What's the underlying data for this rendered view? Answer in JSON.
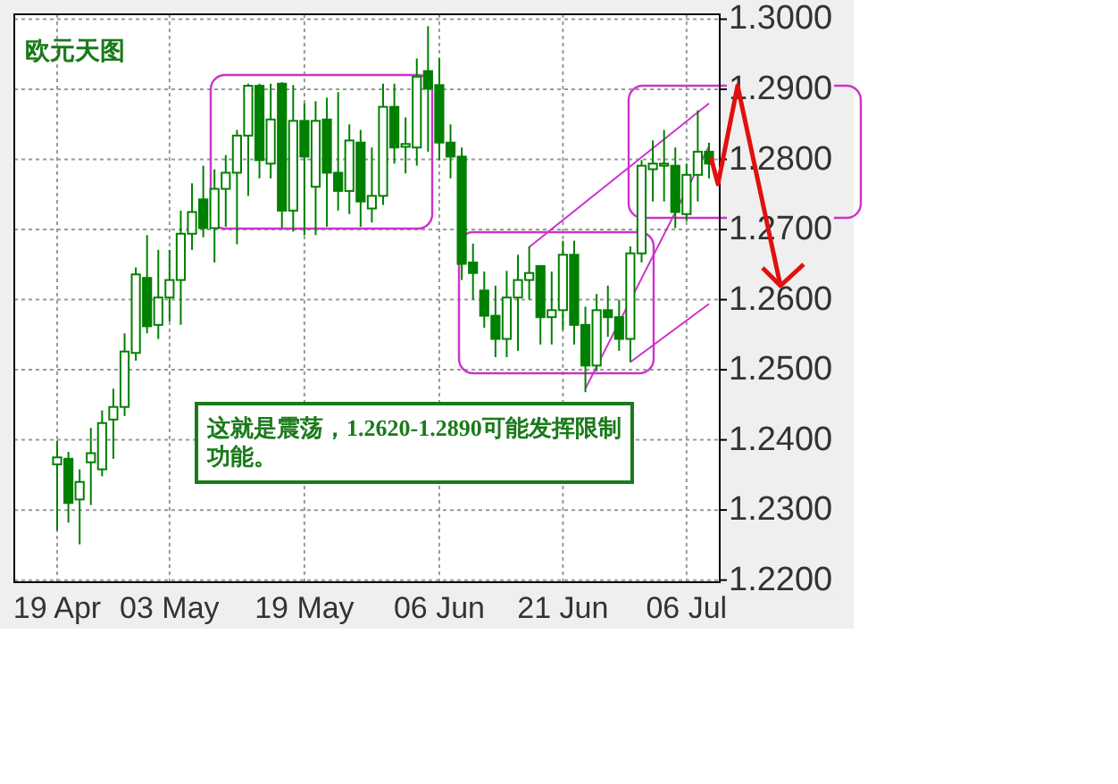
{
  "chart_data": {
    "type": "candlestick",
    "title": "欧元天图",
    "categories": [
      "19 Apr",
      null,
      null,
      null,
      null,
      null,
      null,
      null,
      null,
      null,
      "03 May",
      null,
      null,
      null,
      null,
      null,
      null,
      null,
      null,
      null,
      null,
      null,
      "19 May",
      null,
      null,
      null,
      null,
      null,
      null,
      null,
      null,
      null,
      null,
      null,
      "06 Jun",
      null,
      null,
      null,
      null,
      null,
      null,
      null,
      null,
      null,
      null,
      "21 Jun",
      null,
      null,
      null,
      null,
      null,
      null,
      null,
      null,
      null,
      null,
      "06 Jul",
      null,
      null
    ],
    "ohlc": [
      [
        1.2365,
        1.2399,
        1.2271,
        1.2375
      ],
      [
        1.2373,
        1.2383,
        1.2282,
        1.231
      ],
      [
        1.2315,
        1.2358,
        1.2251,
        1.234
      ],
      [
        1.2368,
        1.2417,
        1.2307,
        1.2381
      ],
      [
        1.2358,
        1.2442,
        1.2348,
        1.2424
      ],
      [
        1.2429,
        1.2473,
        1.2373,
        1.2447
      ],
      [
        1.2447,
        1.2552,
        1.2434,
        1.2526
      ],
      [
        1.2524,
        1.2646,
        1.2513,
        1.2636
      ],
      [
        1.2631,
        1.2692,
        1.2552,
        1.2562
      ],
      [
        1.2564,
        1.2671,
        1.2544,
        1.2603
      ],
      [
        1.2603,
        1.2671,
        1.2569,
        1.2628
      ],
      [
        1.2628,
        1.2727,
        1.2564,
        1.2694
      ],
      [
        1.2694,
        1.2766,
        1.2671,
        1.2725
      ],
      [
        1.2743,
        1.2791,
        1.2689,
        1.2702
      ],
      [
        1.2702,
        1.2786,
        1.2653,
        1.2758
      ],
      [
        1.2758,
        1.2806,
        1.2704,
        1.2781
      ],
      [
        1.2781,
        1.2842,
        1.2679,
        1.2834
      ],
      [
        1.2834,
        1.2908,
        1.2748,
        1.2905
      ],
      [
        1.2905,
        1.2908,
        1.2773,
        1.2799
      ],
      [
        1.2794,
        1.2908,
        1.2773,
        1.2857
      ],
      [
        1.2908,
        1.291,
        1.2702,
        1.2727
      ],
      [
        1.2727,
        1.2906,
        1.2697,
        1.2855
      ],
      [
        1.2855,
        1.288,
        1.2692,
        1.2804
      ],
      [
        1.2761,
        1.2883,
        1.2692,
        1.2855
      ],
      [
        1.2857,
        1.2888,
        1.2704,
        1.2781
      ],
      [
        1.2781,
        1.2896,
        1.2727,
        1.2755
      ],
      [
        1.2755,
        1.285,
        1.2722,
        1.2827
      ],
      [
        1.2824,
        1.2842,
        1.2704,
        1.274
      ],
      [
        1.273,
        1.2817,
        1.271,
        1.2748
      ],
      [
        1.2748,
        1.2908,
        1.2735,
        1.2875
      ],
      [
        1.2875,
        1.2908,
        1.2794,
        1.2817
      ],
      [
        1.2818,
        1.286,
        1.278,
        1.2822
      ],
      [
        1.2817,
        1.2944,
        1.2791,
        1.2918
      ],
      [
        1.2926,
        1.299,
        1.2811,
        1.2901
      ],
      [
        1.2906,
        1.2944,
        1.2799,
        1.2824
      ],
      [
        1.2824,
        1.285,
        1.2773,
        1.2804
      ],
      [
        1.2804,
        1.2817,
        1.2628,
        1.2651
      ],
      [
        1.2653,
        1.268,
        1.26,
        1.2638
      ],
      [
        1.2613,
        1.264,
        1.256,
        1.2577
      ],
      [
        1.2577,
        1.262,
        1.2518,
        1.2544
      ],
      [
        1.2544,
        1.2641,
        1.2518,
        1.2603
      ],
      [
        1.2603,
        1.2664,
        1.2527,
        1.2628
      ],
      [
        1.2628,
        1.2676,
        1.26,
        1.2638
      ],
      [
        1.2648,
        1.2648,
        1.2536,
        1.2575
      ],
      [
        1.2575,
        1.264,
        1.2536,
        1.2585
      ],
      [
        1.2585,
        1.2684,
        1.2557,
        1.2664
      ],
      [
        1.2664,
        1.2684,
        1.2536,
        1.2564
      ],
      [
        1.2564,
        1.259,
        1.2468,
        1.2506
      ],
      [
        1.2506,
        1.2608,
        1.2498,
        1.2585
      ],
      [
        1.2585,
        1.262,
        1.2547,
        1.2575
      ],
      [
        1.2575,
        1.26,
        1.2527,
        1.2544
      ],
      [
        1.2544,
        1.2676,
        1.2511,
        1.2666
      ],
      [
        1.2666,
        1.2799,
        1.2653,
        1.2791
      ],
      [
        1.2786,
        1.2827,
        1.274,
        1.2794
      ],
      [
        1.2791,
        1.2842,
        1.274,
        1.2794
      ],
      [
        1.2791,
        1.2817,
        1.2702,
        1.2725
      ],
      [
        1.2722,
        1.2794,
        1.2712,
        1.2778
      ],
      [
        1.2778,
        1.287,
        1.274,
        1.2811
      ],
      [
        1.2811,
        1.2824,
        1.2773,
        1.2794
      ]
    ],
    "color": "#008000",
    "series": [
      {
        "type": "line",
        "color": "#cc33cc",
        "values": [
          null,
          null,
          null,
          null,
          null,
          null,
          null,
          null,
          null,
          null,
          null,
          null,
          null,
          null,
          null,
          null,
          null,
          null,
          null,
          null,
          null,
          null,
          null,
          null,
          null,
          null,
          null,
          null,
          null,
          null,
          null,
          null,
          null,
          null,
          null,
          null,
          null,
          null,
          null,
          null,
          null,
          null,
          1.2675,
          null,
          null,
          null,
          null,
          null,
          null,
          null,
          null,
          null,
          null,
          null,
          null,
          null,
          null,
          null,
          1.288
        ]
      },
      {
        "type": "line",
        "color": "#cc33cc",
        "values": [
          null,
          null,
          null,
          null,
          null,
          null,
          null,
          null,
          null,
          null,
          null,
          null,
          null,
          null,
          null,
          null,
          null,
          null,
          null,
          null,
          null,
          null,
          null,
          null,
          null,
          null,
          null,
          null,
          null,
          null,
          null,
          null,
          null,
          null,
          null,
          null,
          null,
          null,
          null,
          null,
          null,
          null,
          null,
          null,
          null,
          null,
          null,
          1.2473,
          null,
          null,
          null,
          null,
          null,
          null,
          null,
          null,
          null,
          null,
          1.2819
        ]
      },
      {
        "type": "line",
        "color": "#cc33cc",
        "values": [
          null,
          null,
          null,
          null,
          null,
          null,
          null,
          null,
          null,
          null,
          null,
          null,
          null,
          null,
          null,
          null,
          null,
          null,
          null,
          null,
          null,
          null,
          null,
          null,
          null,
          null,
          null,
          null,
          null,
          null,
          null,
          null,
          null,
          null,
          null,
          null,
          null,
          null,
          null,
          null,
          null,
          null,
          null,
          null,
          null,
          null,
          null,
          null,
          null,
          null,
          null,
          1.2511,
          null,
          null,
          null,
          null,
          null,
          null,
          1.2594
        ]
      }
    ],
    "ylim": [
      1.2197,
      1.3007
    ],
    "yticks": [
      {
        "value": 1.22,
        "label": "1.2200"
      },
      {
        "value": 1.23,
        "label": "1.2300"
      },
      {
        "value": 1.24,
        "label": "1.2400"
      },
      {
        "value": 1.25,
        "label": "1.2500"
      },
      {
        "value": 1.26,
        "label": "1.2600"
      },
      {
        "value": 1.27,
        "label": "1.2700"
      },
      {
        "value": 1.28,
        "label": "1.2800"
      },
      {
        "value": 1.29,
        "label": "1.2900"
      },
      {
        "value": 1.3,
        "label": "1.3000"
      }
    ],
    "grid": true,
    "annotations": [
      "这就是震荡，1.2620-1.2890可能发挥限制功能。"
    ]
  }
}
